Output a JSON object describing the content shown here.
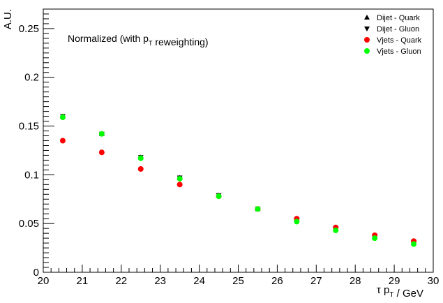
{
  "chart_data": {
    "type": "scatter",
    "xlabel": "τ p_T / GeV",
    "ylabel": "A.U.",
    "xlim": [
      20,
      30
    ],
    "ylim": [
      0,
      0.27
    ],
    "xticks": [
      20,
      21,
      22,
      23,
      24,
      25,
      26,
      27,
      28,
      29,
      30
    ],
    "yticks": [
      0,
      0.05,
      0.1,
      0.15,
      0.2,
      0.25
    ],
    "ytick_labels": [
      "0",
      "0.05",
      "0.1",
      "0.15",
      "0.2",
      "0.25"
    ],
    "annotation": "Normalized (with p_T reweighting)",
    "legend_position": "top-right",
    "grid": false,
    "x": [
      20.5,
      21.5,
      22.5,
      23.5,
      24.5,
      25.5,
      26.5,
      27.5,
      28.5,
      29.5
    ],
    "series": [
      {
        "name": "Dijet - Quark",
        "marker": "triangle-up",
        "color": "#000000",
        "values": [
          0.16,
          0.142,
          0.118,
          0.097,
          0.079,
          0.065,
          0.054,
          0.045,
          0.037,
          0.031
        ]
      },
      {
        "name": "Dijet - Gluon",
        "marker": "triangle-down",
        "color": "#000000",
        "values": [
          0.16,
          0.142,
          0.118,
          0.097,
          0.079,
          0.065,
          0.054,
          0.045,
          0.037,
          0.031
        ]
      },
      {
        "name": "Vjets - Quark",
        "marker": "circle",
        "color": "#ff0000",
        "values": [
          0.135,
          0.123,
          0.106,
          0.09,
          0.078,
          0.065,
          0.055,
          0.046,
          0.038,
          0.032
        ]
      },
      {
        "name": "Vjets - Gluon",
        "marker": "circle",
        "color": "#00ff00",
        "values": [
          0.159,
          0.142,
          0.117,
          0.096,
          0.078,
          0.065,
          0.052,
          0.043,
          0.035,
          0.029
        ]
      }
    ]
  }
}
